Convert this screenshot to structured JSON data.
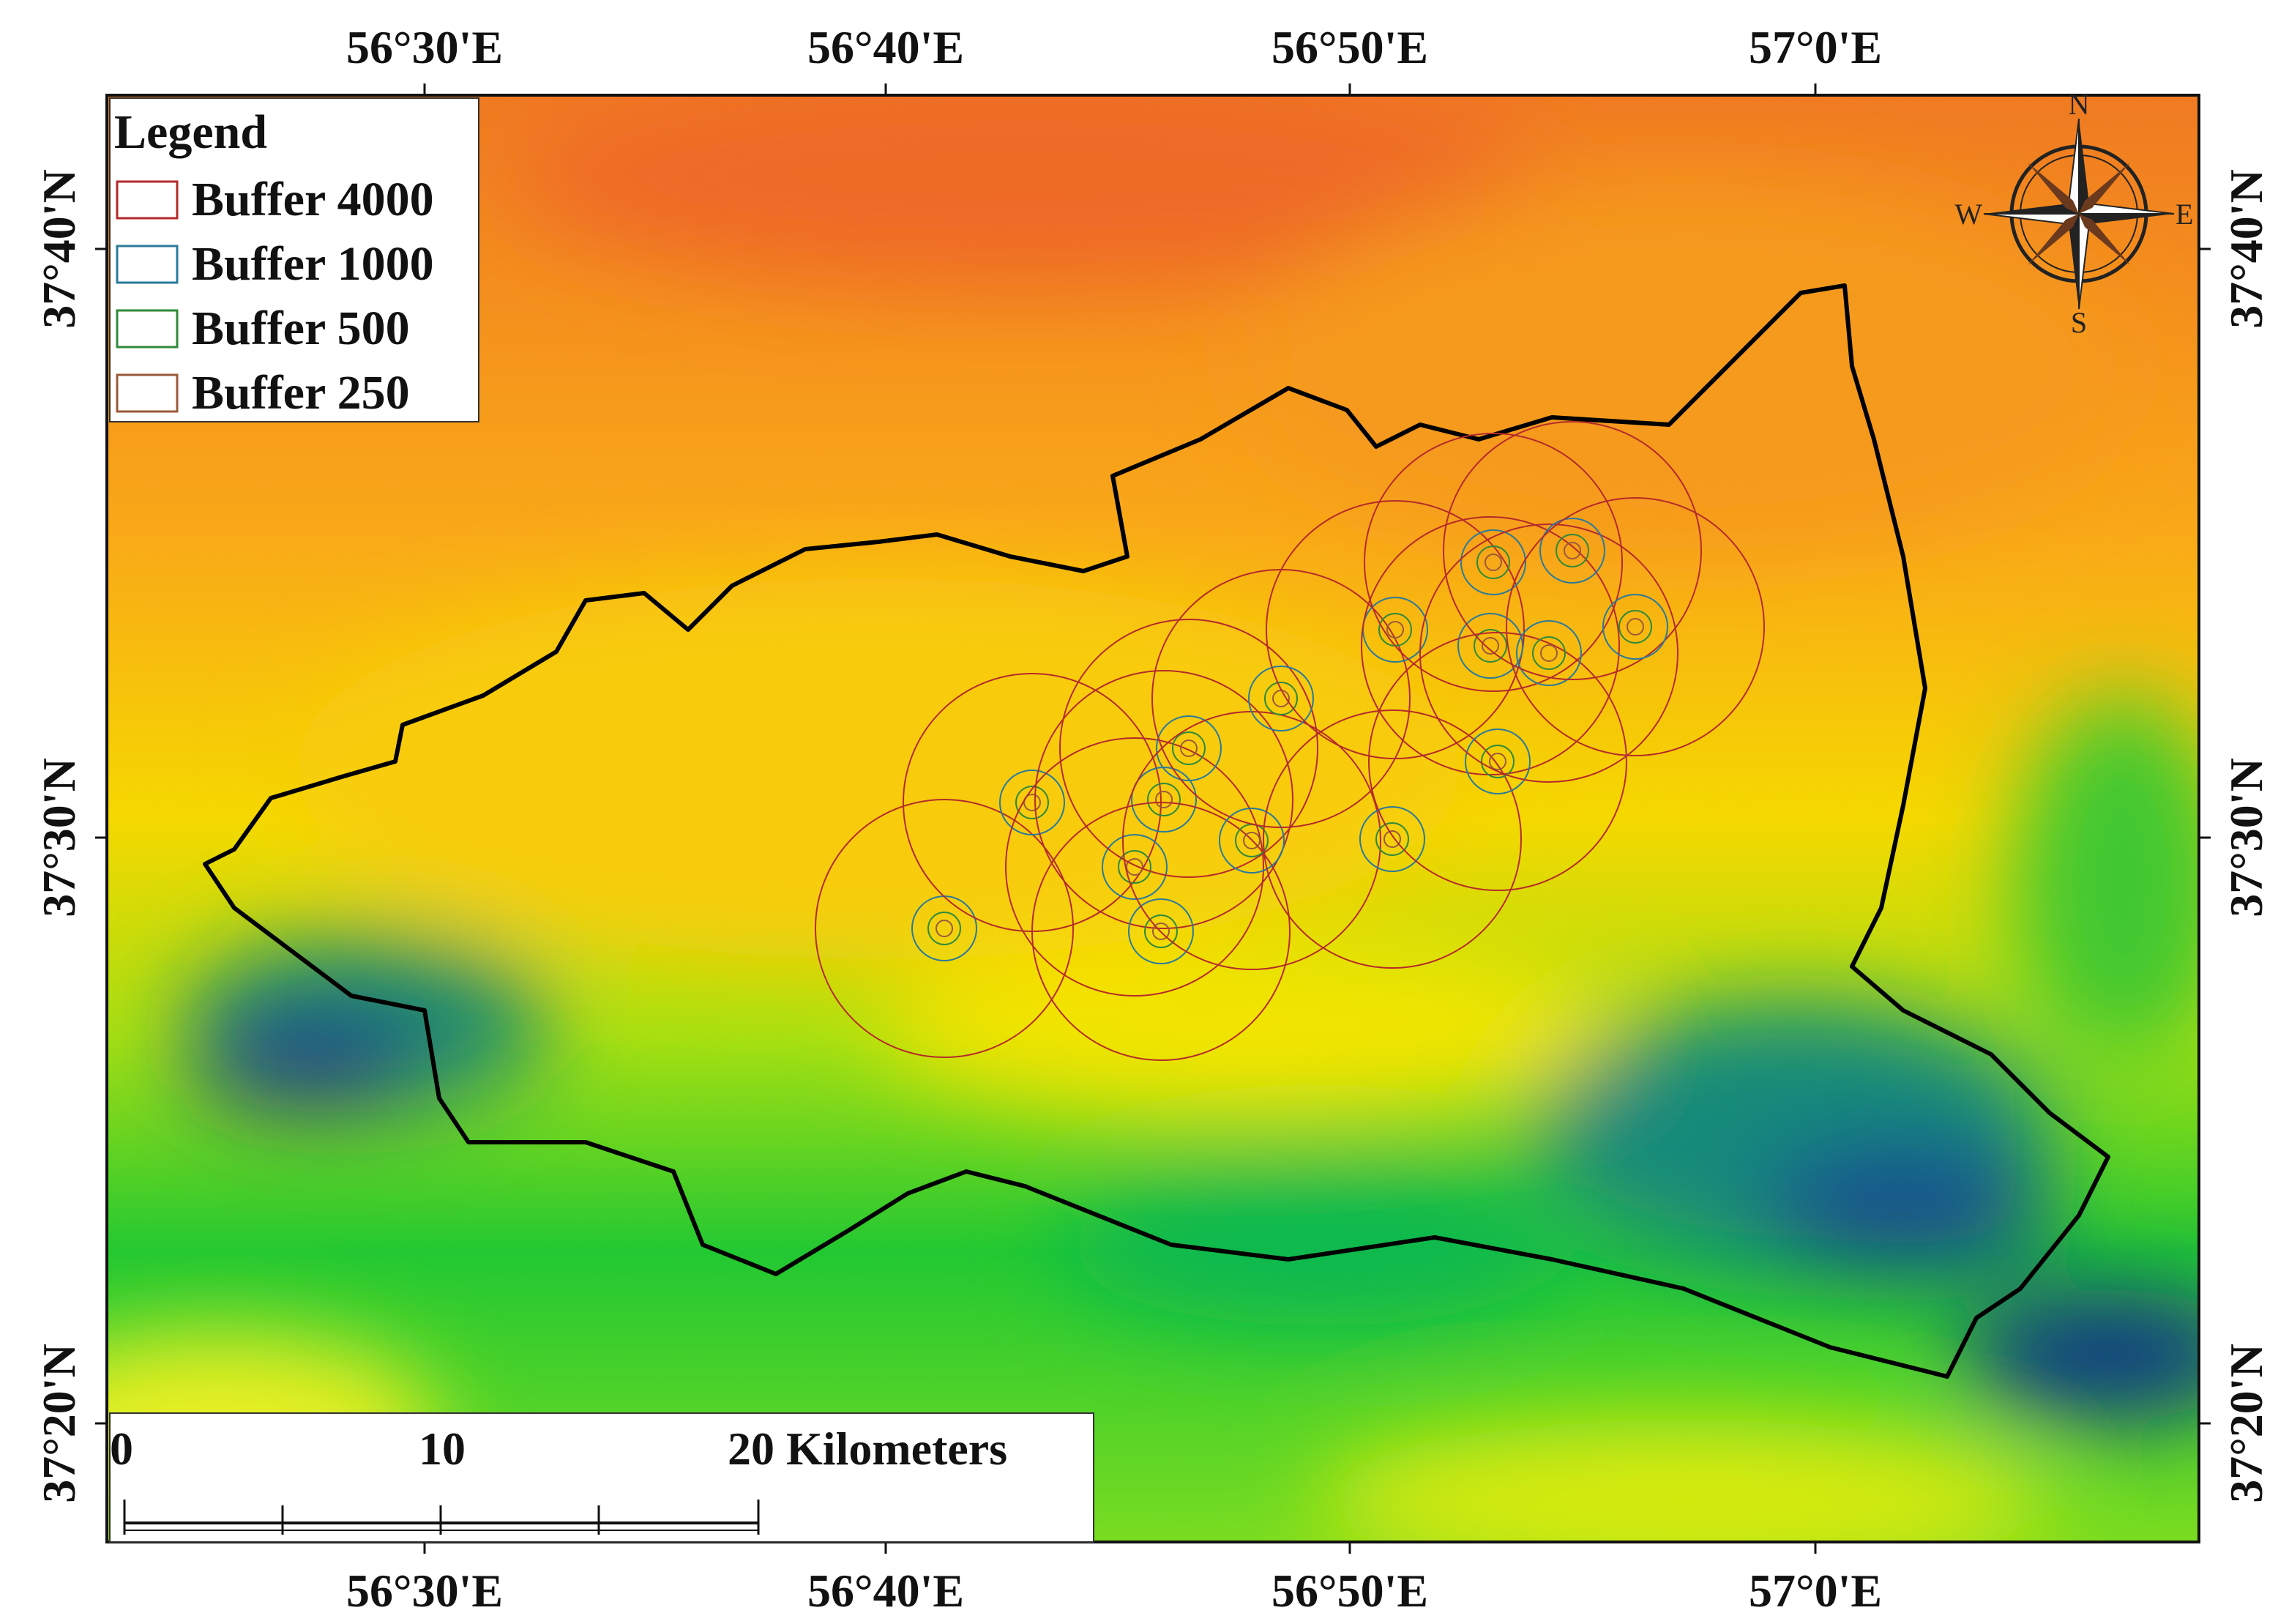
{
  "map": {
    "x_labels_top": [
      "56°30'E",
      "56°40'E",
      "56°50'E",
      "57°0'E"
    ],
    "x_labels_bottom": [
      "56°30'E",
      "56°40'E",
      "56°50'E",
      "57°0'E"
    ],
    "y_labels_left": [
      "37°40'N",
      "37°30'N",
      "37°20'N"
    ],
    "y_labels_right": [
      "37°40'N",
      "37°30'N",
      "37°20'N"
    ],
    "legend": {
      "title": "Legend",
      "items": [
        "Buffer 4000",
        "Buffer 1000",
        "Buffer 500",
        "Buffer 250"
      ]
    },
    "compass": {
      "n": "N",
      "e": "E",
      "s": "S",
      "w": "W"
    },
    "scale_bar": {
      "labels": [
        "0",
        "10",
        "20 Kilometers"
      ]
    }
  }
}
